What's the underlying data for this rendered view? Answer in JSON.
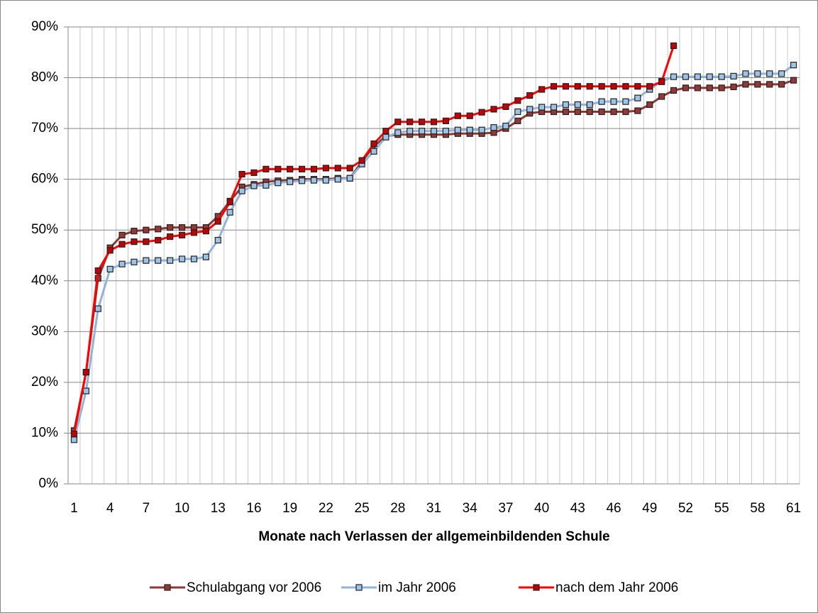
{
  "chart_data": {
    "type": "line",
    "xlabel": "Monate nach Verlassen der allgemeinbildenden Schule",
    "categories": [
      1,
      null,
      null,
      4,
      null,
      null,
      7,
      null,
      null,
      10,
      null,
      null,
      13,
      null,
      null,
      16,
      null,
      null,
      19,
      null,
      null,
      22,
      null,
      null,
      25,
      null,
      null,
      28,
      null,
      null,
      31,
      null,
      null,
      34,
      null,
      null,
      37,
      null,
      null,
      40,
      null,
      null,
      43,
      null,
      null,
      46,
      null,
      null,
      49,
      null,
      null,
      52,
      null,
      null,
      55,
      null,
      null,
      58,
      null,
      null,
      61
    ],
    "ylim": [
      0,
      90
    ],
    "yticks": [
      {
        "value": 0,
        "label": "0%"
      },
      {
        "value": 10,
        "label": "10%"
      },
      {
        "value": 20,
        "label": "20%"
      },
      {
        "value": 30,
        "label": "30%"
      },
      {
        "value": 40,
        "label": "40%"
      },
      {
        "value": 50,
        "label": "50%"
      },
      {
        "value": 60,
        "label": "60%"
      },
      {
        "value": 70,
        "label": "70%"
      },
      {
        "value": 80,
        "label": "80%"
      },
      {
        "value": 90,
        "label": "90%"
      }
    ],
    "grid": true,
    "legend": "bottom",
    "series": [
      {
        "name": "Schulabgang vor 2006",
        "color": "#8c3836",
        "marker_color": "#953735",
        "values": [
          10.5,
          22,
          40.5,
          46.5,
          49,
          49.8,
          50,
          50.2,
          50.5,
          50.5,
          50.5,
          50.5,
          52.7,
          55.7,
          58.5,
          59,
          59.5,
          59.7,
          59.8,
          60,
          60,
          60,
          60.2,
          60.2,
          63.5,
          66.5,
          68.5,
          68.8,
          68.8,
          68.8,
          68.8,
          68.8,
          69,
          69,
          69,
          69.2,
          70,
          71.5,
          73,
          73.3,
          73.3,
          73.3,
          73.3,
          73.3,
          73.3,
          73.3,
          73.3,
          73.5,
          74.7,
          76.3,
          77.5,
          78,
          78,
          78,
          78,
          78.2,
          78.7,
          78.7,
          78.7,
          78.7,
          79.5
        ]
      },
      {
        "name": "im Jahr 2006",
        "color": "#95b3d7",
        "marker_color": "#9dc3e6",
        "values": [
          8.7,
          18.3,
          34.5,
          42.3,
          43.3,
          43.7,
          44,
          44,
          44,
          44.3,
          44.3,
          44.7,
          48,
          53.5,
          57.7,
          58.7,
          58.8,
          59.3,
          59.5,
          59.7,
          59.8,
          59.8,
          60,
          60.2,
          63,
          65.5,
          68.3,
          69.2,
          69.5,
          69.5,
          69.5,
          69.5,
          69.7,
          69.7,
          69.7,
          70.2,
          70.5,
          73.3,
          73.8,
          74.2,
          74.2,
          74.7,
          74.7,
          74.7,
          75.3,
          75.3,
          75.3,
          76,
          77.7,
          79.3,
          80.2,
          80.2,
          80.2,
          80.2,
          80.2,
          80.3,
          80.8,
          80.8,
          80.8,
          80.8,
          82.5
        ]
      },
      {
        "name": "nach dem Jahr 2006",
        "color": "#ff0000",
        "marker_color": "#c00000",
        "values": [
          9.8,
          22,
          42,
          46,
          47.2,
          47.7,
          47.7,
          48,
          48.7,
          49,
          49.5,
          49.8,
          51.7,
          55.5,
          61,
          61.3,
          62,
          62,
          62,
          62,
          62,
          62.2,
          62.2,
          62.2,
          63.7,
          67,
          69.5,
          71.3,
          71.3,
          71.3,
          71.3,
          71.5,
          72.5,
          72.5,
          73.2,
          73.8,
          74.3,
          75.5,
          76.5,
          77.7,
          78.3,
          78.3,
          78.3,
          78.3,
          78.3,
          78.3,
          78.3,
          78.3,
          78.3,
          79.2,
          86.3,
          null,
          null,
          null,
          null,
          null,
          null,
          null,
          null,
          null,
          null
        ]
      }
    ]
  }
}
